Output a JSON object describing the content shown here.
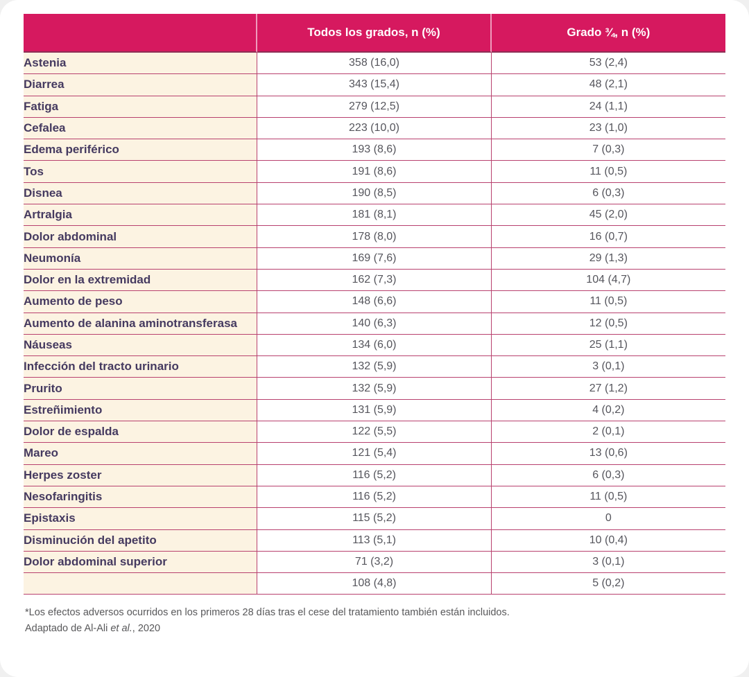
{
  "colors": {
    "header_bg": "#d6195f",
    "header_text": "#ffffff",
    "header_divider": "#ef9cbd",
    "header_bottom_border": "#8d2f55",
    "label_bg": "#fcf3e2",
    "label_text": "#453a60",
    "value_text": "#55555c",
    "row_border": "#b8406e",
    "footer_text": "#58585a",
    "card_bg": "#ffffff"
  },
  "chart_data": {
    "type": "table",
    "columns": [
      "",
      "Todos los grados, n (%)",
      "Grado ¾, n (%)"
    ],
    "rows": [
      [
        "Astenia",
        "358 (16,0)",
        "53 (2,4)"
      ],
      [
        "Diarrea",
        "343 (15,4)",
        "48 (2,1)"
      ],
      [
        "Fatiga",
        "279 (12,5)",
        "24 (1,1)"
      ],
      [
        "Cefalea",
        "223 (10,0)",
        "23 (1,0)"
      ],
      [
        "Edema periférico",
        "193 (8,6)",
        "7 (0,3)"
      ],
      [
        "Tos",
        "191 (8,6)",
        "11 (0,5)"
      ],
      [
        "Disnea",
        "190 (8,5)",
        "6 (0,3)"
      ],
      [
        "Artralgia",
        "181 (8,1)",
        "45 (2,0)"
      ],
      [
        "Dolor abdominal",
        "178 (8,0)",
        "16 (0,7)"
      ],
      [
        "Neumonía",
        "169 (7,6)",
        "29 (1,3)"
      ],
      [
        "Dolor en la extremidad",
        "162 (7,3)",
        "104 (4,7)"
      ],
      [
        "Aumento de peso",
        "148 (6,6)",
        "11 (0,5)"
      ],
      [
        "Aumento de alanina aminotransferasa",
        "140 (6,3)",
        "12 (0,5)"
      ],
      [
        "Náuseas",
        "134 (6,0)",
        "25 (1,1)"
      ],
      [
        "Infección del tracto urinario",
        "132 (5,9)",
        "3 (0,1)"
      ],
      [
        "Prurito",
        "132 (5,9)",
        "27 (1,2)"
      ],
      [
        "Estreñimiento",
        "131 (5,9)",
        "4 (0,2)"
      ],
      [
        "Dolor de espalda",
        "122 (5,5)",
        "2 (0,1)"
      ],
      [
        "Mareo",
        "121 (5,4)",
        "13 (0,6)"
      ],
      [
        "Herpes zoster",
        "116 (5,2)",
        "6 (0,3)"
      ],
      [
        "Nesofaringitis",
        "116 (5,2)",
        "11 (0,5)"
      ],
      [
        "Epistaxis",
        "115 (5,2)",
        "0"
      ],
      [
        "Disminución del apetito",
        "113 (5,1)",
        "10 (0,4)"
      ],
      [
        "Dolor abdominal superior",
        "71 (3,2)",
        "3 (0,1)"
      ],
      [
        "",
        "108 (4,8)",
        "5 (0,2)"
      ]
    ]
  },
  "footer": {
    "note": "*Los efectos adversos ocurridos en los primeros 28 días tras el cese del tratamiento también están incluidos.",
    "adapted_prefix": "Adaptado de Al-Ali ",
    "adapted_etal": "et al.",
    "adapted_suffix": ", 2020"
  }
}
